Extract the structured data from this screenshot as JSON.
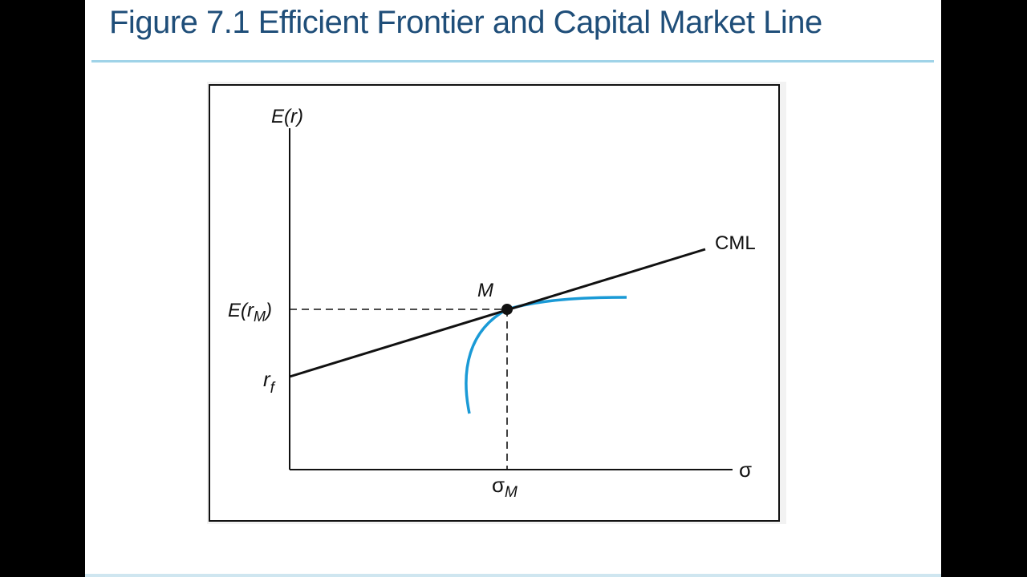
{
  "slide": {
    "title": "Figure 7.1 Efficient Frontier and Capital Market Line"
  },
  "diagram": {
    "y_axis_label_prefix": "E(",
    "y_axis_label_var": "r",
    "y_axis_label_suffix": ")",
    "x_axis_label": "σ",
    "cml_label": "CML",
    "market_point_label": "M",
    "erm_label_prefix": "E(",
    "erm_label_var": "r",
    "erm_label_sub": "M",
    "erm_label_suffix": ")",
    "rf_label_var": "r",
    "rf_label_sub": "f",
    "sigma_m_label_main": "σ",
    "sigma_m_label_sub": "M",
    "colors": {
      "frontier": "#1a9ad6",
      "cml": "#111111",
      "axes": "#111111",
      "title": "#1f4e79"
    }
  }
}
